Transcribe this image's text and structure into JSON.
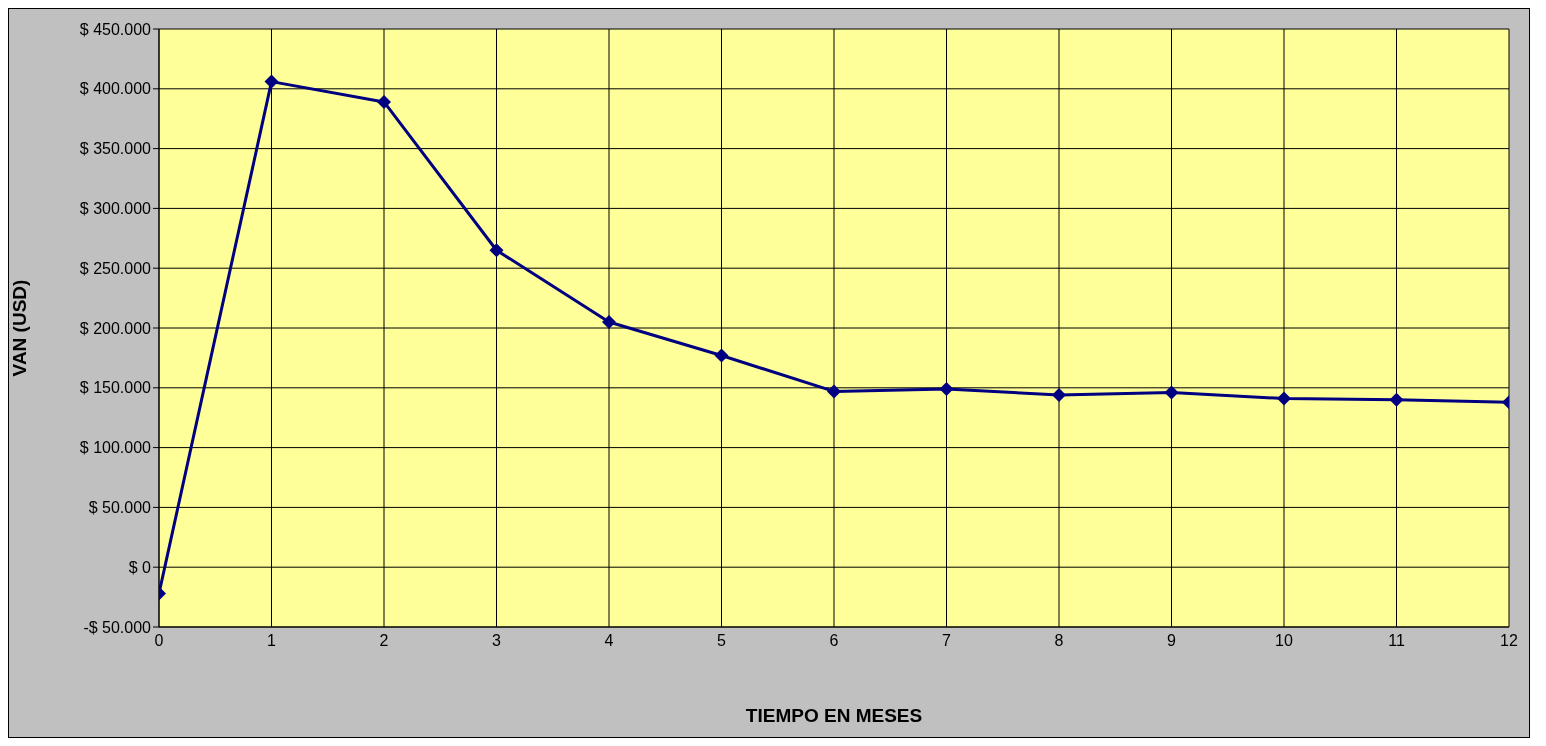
{
  "chart_data": {
    "type": "line",
    "xlabel": "TIEMPO EN MESES",
    "ylabel": "VAN (USD)",
    "x": [
      0,
      1,
      2,
      3,
      4,
      5,
      6,
      7,
      8,
      9,
      10,
      11,
      12
    ],
    "series": [
      {
        "color": "#000080",
        "values": [
          -22000,
          406000,
          389000,
          265000,
          205000,
          177000,
          147000,
          149000,
          144000,
          146000,
          141000,
          140000,
          138000
        ]
      }
    ],
    "xlim": [
      0,
      12
    ],
    "xticks": [
      0,
      1,
      2,
      3,
      4,
      5,
      6,
      7,
      8,
      9,
      10,
      11,
      12
    ],
    "ylim": [
      -50000,
      450000
    ],
    "yticks": [
      {
        "value": -50000,
        "label": "-$ 50.000"
      },
      {
        "value": 0,
        "label": "$ 0"
      },
      {
        "value": 50000,
        "label": "$ 50.000"
      },
      {
        "value": 100000,
        "label": "$ 100.000"
      },
      {
        "value": 150000,
        "label": "$ 150.000"
      },
      {
        "value": 200000,
        "label": "$ 200.000"
      },
      {
        "value": 250000,
        "label": "$ 250.000"
      },
      {
        "value": 300000,
        "label": "$ 300.000"
      },
      {
        "value": 350000,
        "label": "$ 350.000"
      },
      {
        "value": 400000,
        "label": "$ 400.000"
      },
      {
        "value": 450000,
        "label": "$ 450.000"
      }
    ],
    "grid": true,
    "marker": "diamond",
    "line_style": "solid"
  }
}
